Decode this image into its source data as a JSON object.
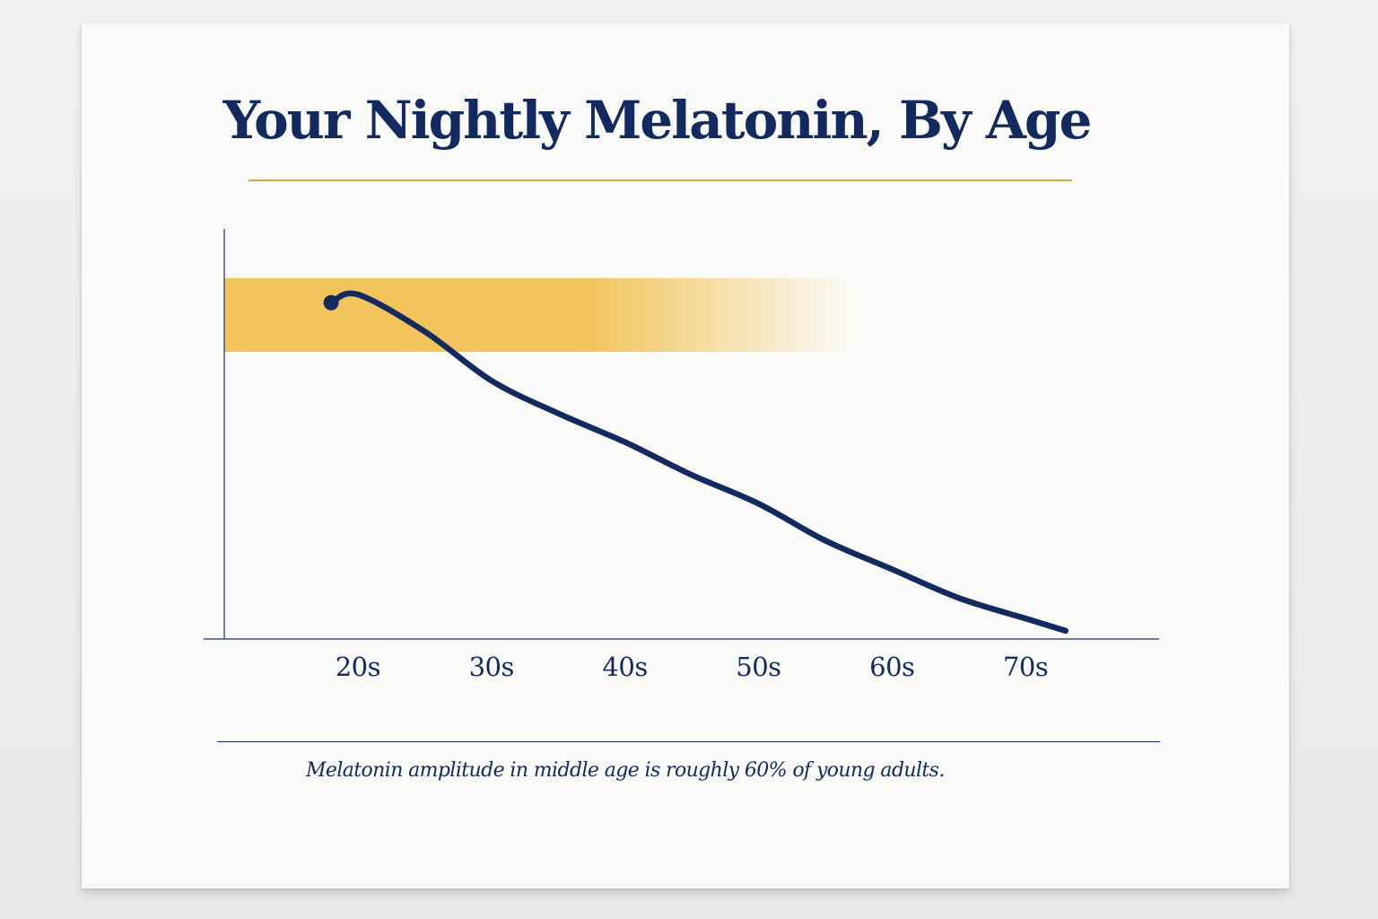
{
  "chart_data": {
    "type": "line",
    "title": "Your Nightly Melatonin, By Age",
    "xlabel": "",
    "ylabel": "",
    "categories": [
      "20s",
      "30s",
      "40s",
      "50s",
      "60s",
      "70s"
    ],
    "series": [
      {
        "x": [
          18,
          20,
          25,
          30,
          35,
          40,
          45,
          50,
          55,
          60,
          65,
          70,
          73
        ],
        "values": [
          82,
          84,
          75,
          63,
          55,
          48,
          40,
          33,
          24,
          17,
          10,
          5,
          2
        ]
      }
    ],
    "xlim": [
      10,
      80
    ],
    "ylim": [
      0,
      100
    ],
    "highlight_band": {
      "y": [
        70,
        88
      ],
      "x_end": 53,
      "color": "#f2c45c"
    },
    "grid": false,
    "legend": "none",
    "colors": {
      "line": "#132a61",
      "axis": "#1e2f66",
      "band": "#f2c45c",
      "accent_rule": "#d3a441"
    }
  },
  "caption": "Melatonin amplitude in middle age is roughly 60% of young adults."
}
